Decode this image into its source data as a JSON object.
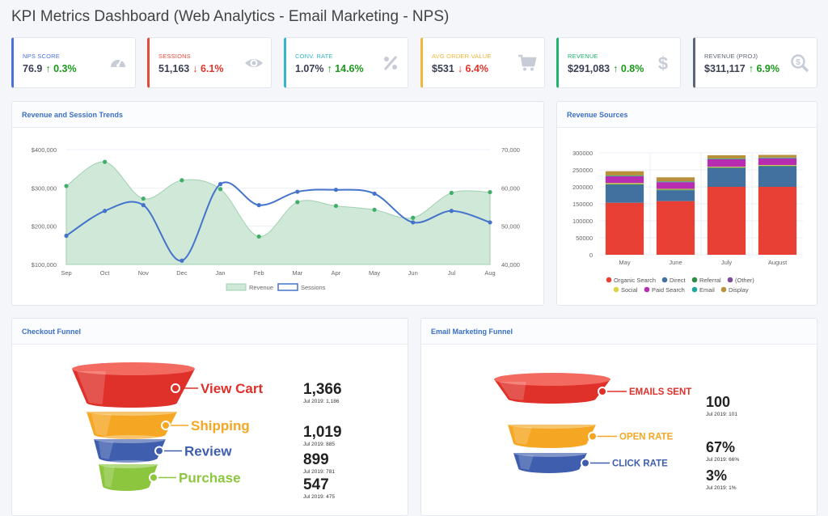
{
  "page_title": "KPI Metrics Dashboard (Web Analytics - Email Marketing - NPS)",
  "colors": {
    "accent": "#3a6fc4",
    "up": "#1a9a1a",
    "down": "#e0342b"
  },
  "kpis": [
    {
      "label": "NPS SCORE",
      "value": "76.9",
      "change": "↑ 0.3%",
      "direction": "up",
      "color": "#4a72d8",
      "icon": "gauge-icon"
    },
    {
      "label": "SESSIONS",
      "value": "51,163",
      "change": "↓ 6.1%",
      "direction": "down",
      "color": "#e24b3c",
      "icon": "eye-icon"
    },
    {
      "label": "CONV. RATE",
      "value": "1.07%",
      "change": "↑ 14.6%",
      "direction": "up",
      "color": "#34b6c9",
      "icon": "percent-icon"
    },
    {
      "label": "AVG ORDER VALUE",
      "value": "$531",
      "change": "↓ 6.4%",
      "direction": "down",
      "color": "#efb73a",
      "icon": "cart-icon"
    },
    {
      "label": "REVENUE",
      "value": "$291,083",
      "change": "↑ 0.8%",
      "direction": "up",
      "color": "#1fb36b",
      "icon": "dollar-icon"
    },
    {
      "label": "REVENUE (PROJ)",
      "value": "$311,117",
      "change": "↑ 6.9%",
      "direction": "up",
      "color": "#5d6472",
      "icon": "search-dollar-icon"
    }
  ],
  "cards": {
    "trends_title": "Revenue and Session Trends",
    "sources_title": "Revenue Sources",
    "checkout_title": "Checkout Funnel",
    "email_title": "Email Marketing Funnel"
  },
  "chart_data": [
    {
      "type": "line",
      "title": "Revenue and Session Trends",
      "categories": [
        "Sep",
        "Oct",
        "Nov",
        "Dec",
        "Jan",
        "Feb",
        "Mar",
        "Apr",
        "May",
        "Jun",
        "Jul",
        "Aug"
      ],
      "left_axis": {
        "ylim": [
          100000,
          400000
        ],
        "ticks": [
          "$100,000",
          "$200,000",
          "$300,000",
          "$400,000"
        ]
      },
      "right_axis": {
        "ylim": [
          40000,
          70000
        ],
        "ticks": [
          "40,000",
          "50,000",
          "60,000",
          "70,000"
        ]
      },
      "grid": true,
      "legend": "bottom",
      "series": [
        {
          "name": "Revenue",
          "type": "area",
          "axis": "left",
          "color": "#54b67a",
          "values": [
            305000,
            368000,
            272000,
            320000,
            297000,
            173000,
            263000,
            253000,
            243000,
            222000,
            287000,
            289000
          ]
        },
        {
          "name": "Sessions",
          "type": "line",
          "axis": "right",
          "color": "#4473cc",
          "values": [
            47500,
            54000,
            55500,
            41000,
            61000,
            55500,
            59000,
            59500,
            58500,
            51000,
            54000,
            51000
          ]
        }
      ]
    },
    {
      "type": "bar",
      "stacked": true,
      "title": "Revenue Sources",
      "categories": [
        "May",
        "June",
        "July",
        "August"
      ],
      "ylim": [
        0,
        300000
      ],
      "ticks": [
        "0",
        "50000",
        "100000",
        "150000",
        "200000",
        "250000",
        "300000"
      ],
      "grid": true,
      "legend": "bottom",
      "series": [
        {
          "name": "Organic Search",
          "color": "#e84035",
          "values": [
            153000,
            158000,
            200000,
            200000
          ]
        },
        {
          "name": "Direct",
          "color": "#43719f",
          "values": [
            53000,
            32000,
            55000,
            60000
          ]
        },
        {
          "name": "Referral",
          "color": "#2e8b46",
          "values": [
            2000,
            2000,
            2000,
            2000
          ]
        },
        {
          "name": "(Other)",
          "color": "#7a4c9c",
          "values": [
            0,
            0,
            0,
            0
          ]
        },
        {
          "name": "Social",
          "color": "#dcd246",
          "values": [
            3000,
            2000,
            2000,
            2000
          ]
        },
        {
          "name": "Paid Search",
          "color": "#b72db2",
          "values": [
            20000,
            20000,
            22000,
            20000
          ]
        },
        {
          "name": "Email",
          "color": "#1ea89b",
          "values": [
            2000,
            2000,
            2000,
            2000
          ]
        },
        {
          "name": "Display",
          "color": "#b8913c",
          "values": [
            13000,
            12000,
            10000,
            8000
          ]
        }
      ]
    }
  ],
  "checkout_funnel": [
    {
      "label": "View Cart",
      "value": "1,366",
      "sub": "Jul 2019: 1,186",
      "color": "#e0302a"
    },
    {
      "label": "Shipping",
      "value": "1,019",
      "sub": "Jul 2019: 885",
      "color": "#f5a623"
    },
    {
      "label": "Review",
      "value": "899",
      "sub": "Jul 2019: 781",
      "color": "#3f5fae"
    },
    {
      "label": "Purchase",
      "value": "547",
      "sub": "Jul 2019: 475",
      "color": "#8cc63f"
    }
  ],
  "email_funnel": [
    {
      "label": "EMAILS SENT",
      "value": "100",
      "sub": "Jul 2019: 101",
      "color": "#e0302a"
    },
    {
      "label": "OPEN RATE",
      "value": "67%",
      "sub": "Jul 2019: 66%",
      "color": "#f5a623"
    },
    {
      "label": "CLICK RATE",
      "value": "3%",
      "sub": "Jul 2019: 1%",
      "color": "#3f5fae"
    }
  ]
}
